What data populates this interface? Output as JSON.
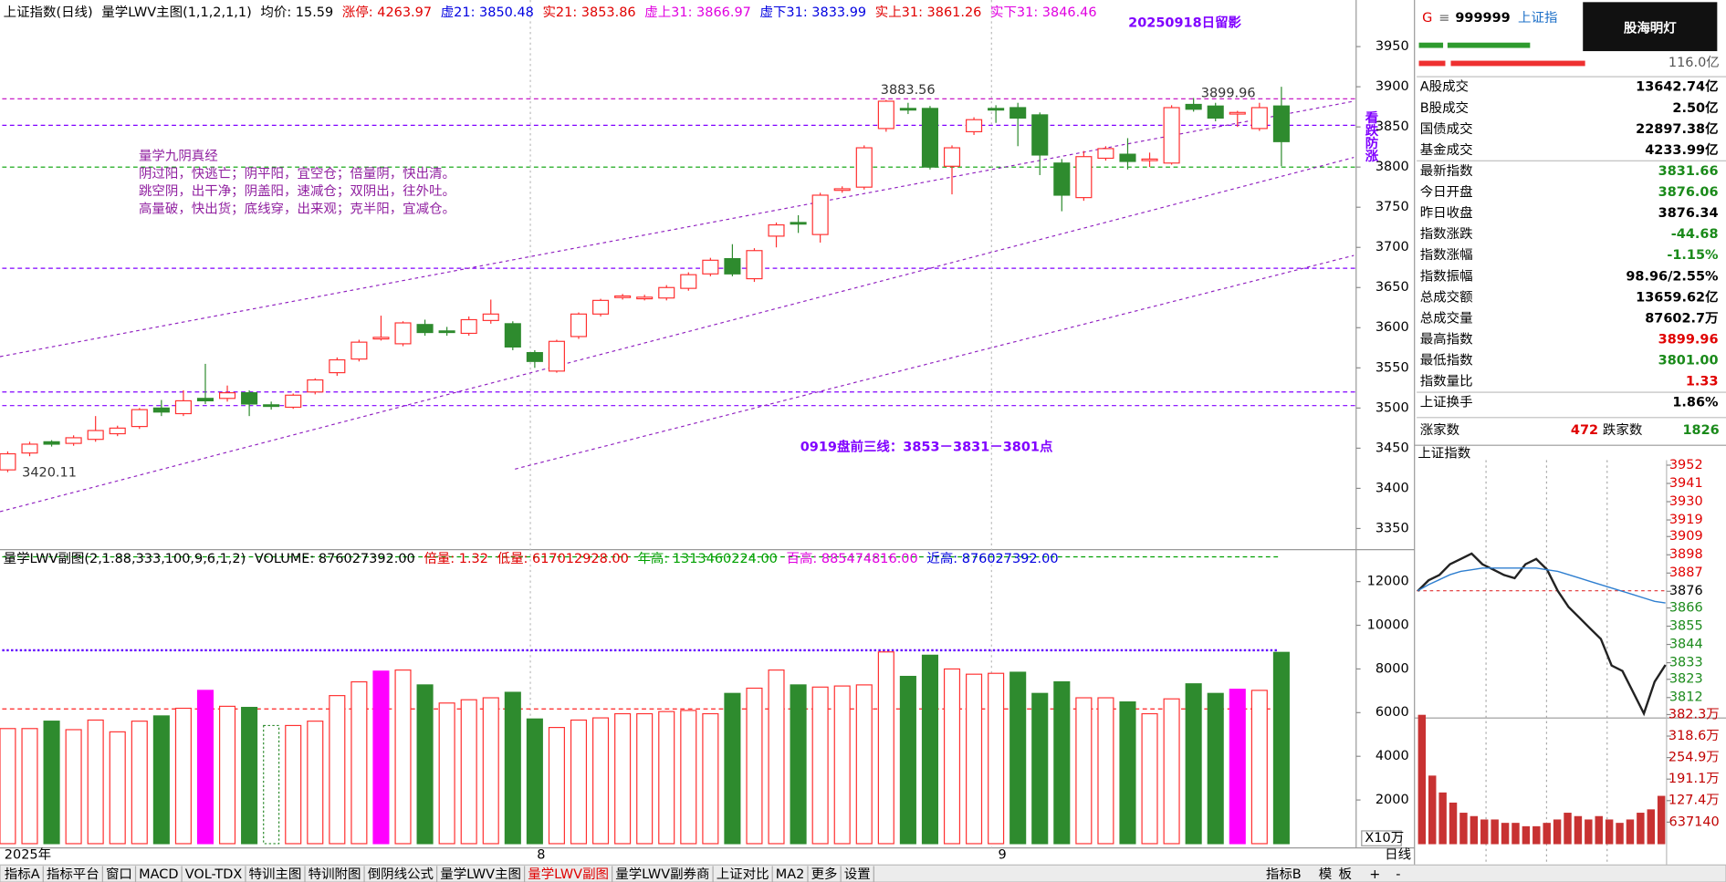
{
  "chart_data": [
    {
      "type": "candlestick",
      "header": [
        {
          "text": "上证指数(日线)",
          "color": "#000000"
        },
        {
          "text": "量学LWV主图(1,1,2,1,1)",
          "color": "#000000"
        },
        {
          "text": "均价: 15.59",
          "color": "#000000"
        },
        {
          "text": "涨停: 4263.97",
          "color": "#e00000"
        },
        {
          "text": "虚21: 3850.48",
          "color": "#0000e0"
        },
        {
          "text": "实21: 3853.86",
          "color": "#e00000"
        },
        {
          "text": "虚上31: 3866.97",
          "color": "#e000e0"
        },
        {
          "text": "虚下31: 3833.99",
          "color": "#0000e0"
        },
        {
          "text": "实上31: 3861.26",
          "color": "#e00000"
        },
        {
          "text": "实下31: 3846.46",
          "color": "#e000e0"
        }
      ],
      "categories": [
        "2025年",
        null,
        null,
        null,
        null,
        null,
        null,
        null,
        null,
        null,
        null,
        null,
        null,
        null,
        null,
        null,
        null,
        null,
        null,
        null,
        null,
        null,
        null,
        null,
        "8",
        null,
        null,
        null,
        null,
        null,
        null,
        null,
        null,
        null,
        null,
        null,
        null,
        null,
        null,
        null,
        null,
        null,
        null,
        null,
        null,
        "9",
        null,
        null,
        null,
        null,
        null,
        null,
        null,
        null,
        null,
        null,
        null,
        null,
        null
      ],
      "open": [
        3423,
        3444,
        3458,
        3456,
        3461,
        3468,
        3477,
        3500,
        3493,
        3512,
        3512,
        3519,
        3504,
        3501,
        3520,
        3544,
        3561,
        3587,
        3580,
        3604,
        3596,
        3593,
        3609,
        3605,
        3569,
        3546,
        3589,
        3617,
        3639,
        3637,
        3637,
        3649,
        3667,
        3686,
        3661,
        3714,
        3731,
        3716,
        3772,
        3775,
        3848,
        3873,
        3873,
        3801,
        3844,
        3873,
        3874,
        3865,
        3805,
        3762,
        3811,
        3816,
        3809,
        3805,
        3878,
        3876,
        3867,
        3848,
        3876.06
      ],
      "high": [
        3446,
        3458,
        3460,
        3466,
        3490,
        3478,
        3500,
        3510,
        3522,
        3555,
        3528,
        3522,
        3508,
        3518,
        3537,
        3563,
        3585,
        3615,
        3608,
        3610,
        3601,
        3614,
        3635,
        3608,
        3572,
        3585,
        3619,
        3636,
        3642,
        3641,
        3653,
        3669,
        3687,
        3704,
        3699,
        3731,
        3740,
        3768,
        3776,
        3827,
        3883.56,
        3880,
        3876,
        3827,
        3862,
        3877,
        3880,
        3868,
        3810,
        3820,
        3826,
        3836,
        3818,
        3877,
        3886,
        3880,
        3870,
        3880,
        3899.96
      ],
      "low": [
        3420.11,
        3440,
        3452,
        3453,
        3458,
        3465,
        3474,
        3490,
        3490,
        3505,
        3508,
        3490,
        3498,
        3499,
        3517,
        3540,
        3558,
        3584,
        3577,
        3590,
        3590,
        3590,
        3605,
        3572,
        3550,
        3544,
        3586,
        3614,
        3635,
        3634,
        3634,
        3646,
        3664,
        3664,
        3657,
        3700,
        3718,
        3706,
        3768,
        3772,
        3844,
        3866,
        3797,
        3766,
        3840,
        3855,
        3826,
        3790,
        3745,
        3758,
        3808,
        3797,
        3800,
        3803,
        3869,
        3857,
        3850,
        3845,
        3801
      ],
      "close": [
        3443,
        3455,
        3455,
        3463,
        3472,
        3475,
        3498,
        3495,
        3509,
        3509,
        3519,
        3505,
        3503,
        3516,
        3535,
        3560,
        3582,
        3588,
        3606,
        3594,
        3595,
        3610,
        3617,
        3576,
        3558,
        3583,
        3617,
        3634,
        3639.5,
        3638,
        3650,
        3666,
        3684,
        3667,
        3696,
        3728,
        3730,
        3765,
        3773,
        3824,
        3882,
        3871,
        3800,
        3824,
        3859,
        3872,
        3861,
        3815,
        3765,
        3813,
        3823,
        3807,
        3810,
        3874,
        3872,
        3861,
        3868,
        3874,
        3831.66
      ],
      "up_color": "#ff3030",
      "down_color": "#2e8b2e",
      "ylim": [
        3325,
        4008
      ],
      "yticks": [
        3350,
        3400,
        3450,
        3500,
        3550,
        3600,
        3650,
        3700,
        3750,
        3800,
        3850,
        3900,
        3950
      ],
      "hlines": [
        {
          "value": 3885,
          "color": "#c000c0"
        },
        {
          "value": 3852,
          "color": "#8000ff"
        },
        {
          "value": 3800,
          "color": "#00a000"
        },
        {
          "value": 3674,
          "color": "#8000ff"
        },
        {
          "value": 3520,
          "color": "#8000ff"
        },
        {
          "value": 3503,
          "color": "#8000ff"
        }
      ],
      "trendlines": [
        {
          "x": [
            -0.35,
            61.3
          ],
          "values": [
            3564,
            3882
          ],
          "color": "#9020c0"
        },
        {
          "x": [
            -0.35,
            61.3
          ],
          "values": [
            3371,
            3812
          ],
          "color": "#9020c0"
        },
        {
          "x": [
            23.1,
            61.3
          ],
          "values": [
            3424,
            3690
          ],
          "color": "#9020c0"
        }
      ]
    },
    {
      "type": "bar",
      "header": [
        {
          "text": "量学LWV副图(2,1.88,333,100,9,6,1,2)",
          "color": "#000000"
        },
        {
          "text": "VOLUME: 876027392.00",
          "color": "#000000"
        },
        {
          "text": "倍量: 1.32",
          "color": "#e00000"
        },
        {
          "text": "低量: 617012928.00",
          "color": "#e00000"
        },
        {
          "text": "年高: 1313460224.00",
          "color": "#00a000"
        },
        {
          "text": "百高: 885474816.00",
          "color": "#e000e0"
        },
        {
          "text": "近高: 876027392.00",
          "color": "#0000e0"
        }
      ],
      "unit_label": "X10万",
      "values": [
        5270,
        5270,
        5610,
        5220,
        5660,
        5120,
        5610,
        5850,
        6200,
        7020,
        6290,
        6240,
        5410,
        5410,
        5610,
        6780,
        7410,
        7900,
        7950,
        7270,
        6440,
        6590,
        6680,
        6930,
        5710,
        5320,
        5660,
        5760,
        5950,
        5950,
        6050,
        6100,
        5950,
        6880,
        7120,
        7950,
        7270,
        7170,
        7220,
        7270,
        8780,
        7660,
        8630,
        8000,
        7760,
        7800,
        7850,
        6880,
        7410,
        6680,
        6680,
        6490,
        5950,
        6630,
        7320,
        6880,
        7070,
        7020,
        8760
      ],
      "styles": [
        "up",
        "up",
        "down",
        "up",
        "up",
        "up",
        "up",
        "down",
        "up",
        "flag",
        "up",
        "down",
        "dotted",
        "up",
        "up",
        "up",
        "up",
        "flag",
        "up",
        "down",
        "up",
        "up",
        "up",
        "down",
        "down",
        "up",
        "up",
        "up",
        "up",
        "up",
        "up",
        "up",
        "up",
        "down",
        "up",
        "up",
        "down",
        "up",
        "up",
        "up",
        "up",
        "down",
        "down",
        "up",
        "up",
        "up",
        "down",
        "down",
        "down",
        "up",
        "up",
        "down",
        "up",
        "up",
        "down",
        "down",
        "flag",
        "up",
        "down"
      ],
      "colors": {
        "up": "#ff3030",
        "down": "#2e8b2e",
        "flag": "#ff00ff",
        "dotted": "#2e8b2e"
      },
      "ylim": [
        0,
        13366
      ],
      "yticks": [
        2000,
        4000,
        6000,
        8000,
        10000,
        12000
      ],
      "hlines": [
        {
          "value": 13134.6,
          "color": "#00a000"
        },
        {
          "value": 8854.7,
          "color": "#6000ff"
        },
        {
          "value": 6170.1,
          "color": "#ff2020"
        }
      ]
    },
    {
      "type": "line",
      "title": "上证指数",
      "series": [
        {
          "color": "#222222",
          "values": [
            3876.2,
            3882.6,
            3885.8,
            3892.3,
            3895.5,
            3898.7,
            3892.3,
            3889.1,
            3885.8,
            3883.9,
            3892.3,
            3895.5,
            3889.1,
            3876.2,
            3866.6,
            3860.2,
            3853.7,
            3847.3,
            3831.3,
            3828.0,
            3815.2,
            3802.4,
            3821.6,
            3831.7
          ]
        },
        {
          "color": "#2f7fd0",
          "values": [
            3876.3,
            3880,
            3883,
            3886,
            3888,
            3889,
            3890,
            3890,
            3890,
            3890,
            3890,
            3890,
            3889,
            3888,
            3886,
            3884,
            3882,
            3880,
            3878,
            3876,
            3874,
            3872,
            3870,
            3869
          ]
        }
      ],
      "prev_close": 3876.34,
      "ylim": [
        3801,
        3955
      ],
      "yticks": [
        3952,
        3941,
        3930,
        3919,
        3909,
        3898,
        3887,
        3876,
        3866,
        3855,
        3844,
        3833,
        3823,
        3812
      ]
    },
    {
      "type": "bar",
      "color": "#c83232",
      "values": [
        3800000,
        2000000,
        1500000,
        1200000,
        900000,
        800000,
        700000,
        700000,
        600000,
        600000,
        500000,
        500000,
        600000,
        700000,
        900000,
        800000,
        700000,
        800000,
        700000,
        600000,
        700000,
        900000,
        1000000,
        1400000
      ],
      "ylim": [
        0,
        3975000
      ],
      "yticks": [
        637140,
        {
          "value": 1274280,
          "label": "127.4万"
        },
        {
          "value": 1911420,
          "label": "191.1万"
        },
        {
          "value": 2548560,
          "label": "254.9万"
        },
        {
          "value": 3185700,
          "label": "318.6万"
        },
        {
          "value": 3822840,
          "label": "382.3万"
        }
      ]
    }
  ],
  "annotations": {
    "watermark": "20250918日留影",
    "vertical": "看跌防涨",
    "plan": "0919盘前三线：3853－3831－3801点",
    "poem": [
      "量学九阴真经",
      "阴过阳，快逃亡；阴平阳，宜空仓；倍量阴，快出清。",
      "跳空阴，出干净；阴盖阳，速减仓；双阴出，往外吐。",
      "高量破，快出货；底线穿，出来观；克半阳，宜减仓。"
    ]
  },
  "quote": {
    "flag": "G",
    "menu": "≡",
    "code": "999999",
    "name": "上证指",
    "logo": "股海明灯",
    "amount": "116.0亿",
    "rows": [
      {
        "label": "A股成交",
        "value": "13642.74亿",
        "color": "#000000"
      },
      {
        "label": "B股成交",
        "value": "2.50亿",
        "color": "#000000"
      },
      {
        "label": "国债成交",
        "value": "22897.38亿",
        "color": "#000000"
      },
      {
        "label": "基金成交",
        "value": "4233.99亿",
        "color": "#000000"
      },
      {
        "label": "最新指数",
        "value": "3831.66",
        "color": "#1a8a1a"
      },
      {
        "label": "今日开盘",
        "value": "3876.06",
        "color": "#1a8a1a"
      },
      {
        "label": "昨日收盘",
        "value": "3876.34",
        "color": "#000000"
      },
      {
        "label": "指数涨跌",
        "value": "-44.68",
        "color": "#1a8a1a"
      },
      {
        "label": "指数涨幅",
        "value": "-1.15%",
        "color": "#1a8a1a"
      },
      {
        "label": "指数振幅",
        "value": "98.96/2.55%",
        "color": "#000000"
      },
      {
        "label": "总成交额",
        "value": "13659.62亿",
        "color": "#000000"
      },
      {
        "label": "总成交量",
        "value": "87602.7万",
        "color": "#000000"
      },
      {
        "label": "最高指数",
        "value": "3899.96",
        "color": "#e00000"
      },
      {
        "label": "最低指数",
        "value": "3801.00",
        "color": "#1a8a1a"
      },
      {
        "label": "指数量比",
        "value": "1.33",
        "color": "#e00000"
      },
      {
        "label": "上证换手",
        "value": "1.86%",
        "color": "#000000"
      }
    ],
    "breadth": {
      "up_label": "涨家数",
      "up": "472",
      "down_label": "跌家数",
      "down": "1826"
    }
  },
  "tabs": {
    "items": [
      "指标A",
      "指标平台",
      "窗口",
      "MACD",
      "VOL-TDX",
      "特训主图",
      "特训附图",
      "倒阴线公式",
      "量学LWV主图",
      "量学LWV副图",
      "量学LWV副券商",
      "上证对比",
      "MA2",
      "更多",
      "设置"
    ],
    "active_index": 9,
    "right": [
      "指标B",
      "模",
      "板",
      "+",
      "-"
    ]
  },
  "period": "日线"
}
